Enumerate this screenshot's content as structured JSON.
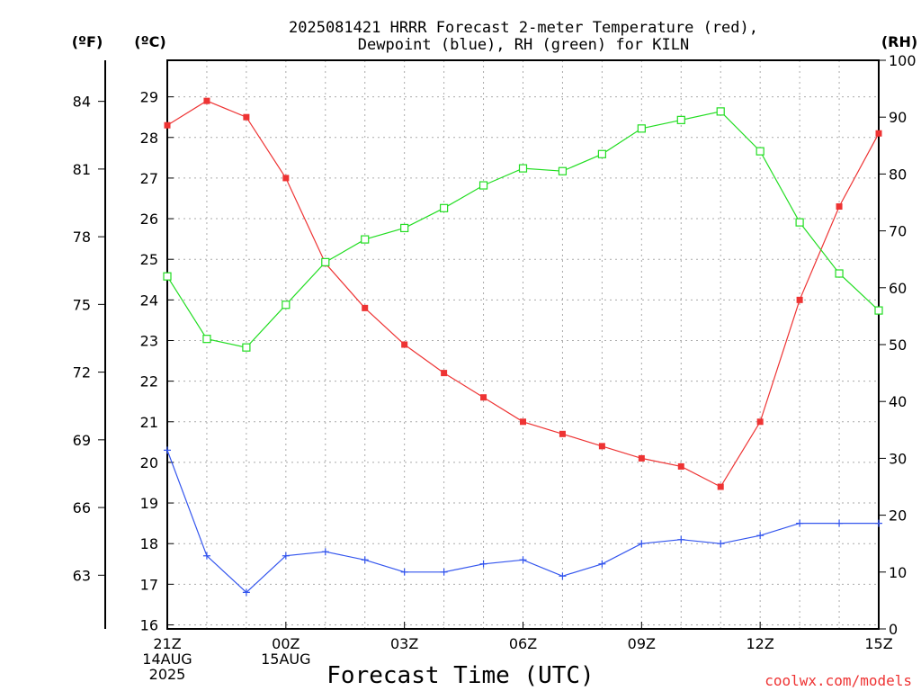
{
  "chart_data": {
    "type": "line",
    "title_lines": [
      "2025081421 HRRR Forecast 2-meter Temperature (red),",
      "Dewpoint (blue), RH (green) for KILN"
    ],
    "xlabel": "Forecast Time (UTC)",
    "credit": "coolwx.com/models",
    "unit_labels": {
      "fahrenheit": "(ºF)",
      "celsius": "(ºC)",
      "rh": "(RH)"
    },
    "x_hours": [
      0,
      1,
      2,
      3,
      4,
      5,
      6,
      7,
      8,
      9,
      10,
      11,
      12,
      13,
      14,
      15,
      16,
      17,
      18
    ],
    "x_ticks": [
      {
        "hour": 0,
        "lines": [
          "21Z",
          "14AUG",
          "2025"
        ]
      },
      {
        "hour": 3,
        "lines": [
          "00Z",
          "15AUG"
        ]
      },
      {
        "hour": 6,
        "lines": [
          "03Z"
        ]
      },
      {
        "hour": 9,
        "lines": [
          "06Z"
        ]
      },
      {
        "hour": 12,
        "lines": [
          "09Z"
        ]
      },
      {
        "hour": 15,
        "lines": [
          "12Z"
        ]
      },
      {
        "hour": 18,
        "lines": [
          "15Z"
        ]
      }
    ],
    "celsius_axis": {
      "range": [
        15.9,
        29.9
      ],
      "ticks": [
        16,
        17,
        18,
        19,
        20,
        21,
        22,
        23,
        24,
        25,
        26,
        27,
        28,
        29
      ]
    },
    "fahrenheit_axis": {
      "ticks": [
        63,
        66,
        69,
        72,
        75,
        78,
        81,
        84
      ]
    },
    "rh_axis": {
      "range": [
        0,
        100
      ],
      "ticks": [
        0,
        10,
        20,
        30,
        40,
        50,
        60,
        70,
        80,
        90,
        100
      ]
    },
    "grid": true,
    "colors": {
      "temperature": "#ee3333",
      "dewpoint": "#3355ee",
      "rh": "#22dd22",
      "credit": "#ee3333"
    },
    "series": [
      {
        "name": "2-meter Temperature (red)",
        "axis": "celsius",
        "values": [
          28.3,
          28.9,
          28.5,
          27.0,
          24.9,
          23.8,
          22.9,
          22.2,
          21.6,
          21.0,
          20.7,
          20.4,
          20.1,
          19.9,
          19.4,
          21.0,
          24.0,
          26.3,
          28.1
        ]
      },
      {
        "name": "Dewpoint (blue)",
        "axis": "celsius",
        "values": [
          20.3,
          17.7,
          16.8,
          17.7,
          17.8,
          17.6,
          17.3,
          17.3,
          17.5,
          17.6,
          17.2,
          17.5,
          18.0,
          18.1,
          18.0,
          18.2,
          18.5,
          18.5,
          18.5
        ]
      },
      {
        "name": "RH (green)",
        "axis": "rh",
        "values": [
          62,
          51,
          49.5,
          57,
          64.5,
          68.5,
          70.5,
          74,
          78,
          81,
          80.5,
          83.5,
          88,
          89.5,
          91,
          84,
          71.5,
          62.5,
          56
        ]
      }
    ]
  }
}
